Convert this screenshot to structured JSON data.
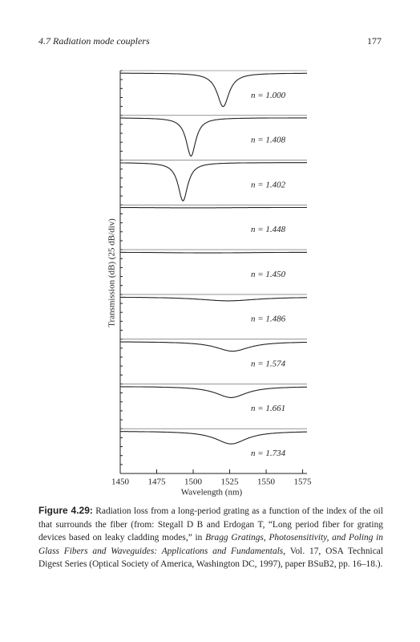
{
  "header": {
    "section": "4.7  Radiation mode couplers",
    "page": "177"
  },
  "chart_data": {
    "type": "line",
    "y_label": "Transmission (dB) (25 dB/div)",
    "x_label": "Wavelength (nm)",
    "xlim": [
      1450,
      1578
    ],
    "xticks": [
      1450,
      1475,
      1500,
      1525,
      1550,
      1575
    ],
    "ylim": [
      -25,
      0
    ],
    "series": [
      {
        "name": "n = 1.000",
        "color": "#222222",
        "dip_wavelength": 1520.5,
        "dip_depth": 21,
        "dip_width": 5
      },
      {
        "name": "n = 1.408",
        "color": "#222222",
        "dip_wavelength": 1498.5,
        "dip_depth": 24,
        "dip_width": 4
      },
      {
        "name": "n = 1.402",
        "color": "#222222",
        "dip_wavelength": 1493,
        "dip_depth": 24,
        "dip_width": 4
      },
      {
        "name": "n = 1.448",
        "color": "#222222",
        "dip_wavelength": 1500,
        "dip_depth": 0.3,
        "dip_width": 40
      },
      {
        "name": "n = 1.450",
        "color": "#222222",
        "dip_wavelength": 1510,
        "dip_depth": 0.5,
        "dip_width": 40
      },
      {
        "name": "n = 1.486",
        "color": "#222222",
        "dip_wavelength": 1524,
        "dip_depth": 2.5,
        "dip_width": 25
      },
      {
        "name": "n = 1.574",
        "color": "#222222",
        "dip_wavelength": 1527,
        "dip_depth": 6,
        "dip_width": 14
      },
      {
        "name": "n = 1.661",
        "color": "#222222",
        "dip_wavelength": 1526,
        "dip_depth": 7,
        "dip_width": 13
      },
      {
        "name": "n = 1.734",
        "color": "#222222",
        "dip_wavelength": 1526,
        "dip_depth": 8,
        "dip_width": 13
      }
    ]
  },
  "caption": {
    "label": "Figure 4.29:",
    "text1": "Radiation loss from a long-period grating as a function of the index of the oil that surrounds the fiber (from: Stegall D B and Erdogan T, “Long period fiber for grating devices based on leaky cladding modes,” in ",
    "italic": "Bragg Gratings, Photosensitivity, and Poling in Glass Fibers and Waveguides: Applications and Fundamentals",
    "text2": ", Vol. 17, OSA Technical Digest Series (Optical Society of America, Washington DC, 1997), paper BSuB2, pp. 16–18.)."
  }
}
